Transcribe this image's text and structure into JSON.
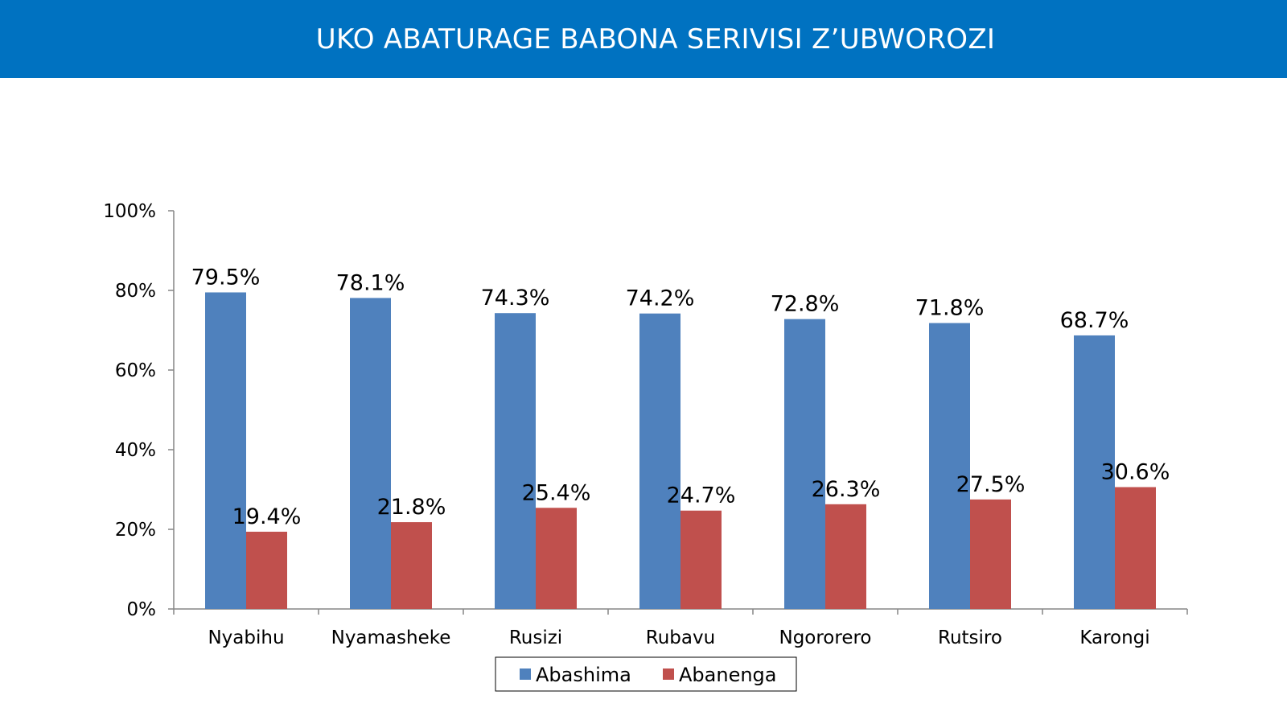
{
  "header": {
    "title": "UKO ABATURAGE BABONA SERIVISI Z’UBWOROZI"
  },
  "chart_data": {
    "type": "bar",
    "title": "UKO ABATURAGE BABONA SERIVISI Z’UBWOROZI",
    "categories": [
      "Nyabihu",
      "Nyamasheke",
      "Rusizi",
      "Rubavu",
      "Ngororero",
      "Rutsiro",
      "Karongi"
    ],
    "series": [
      {
        "name": "Abashima",
        "color": "#4f81bd",
        "values": [
          79.5,
          78.1,
          74.3,
          74.2,
          72.8,
          71.8,
          68.7
        ],
        "labels": [
          "79.5%",
          "78.1%",
          "74.3%",
          "74.2%",
          "72.8%",
          "71.8%",
          "68.7%"
        ]
      },
      {
        "name": "Abanenga",
        "color": "#c0504d",
        "values": [
          19.4,
          21.8,
          25.4,
          24.7,
          26.3,
          27.5,
          30.6
        ],
        "labels": [
          "19.4%",
          "21.8%",
          "25.4%",
          "24.7%",
          "26.3%",
          "27.5%",
          "30.6%"
        ]
      }
    ],
    "ylim": [
      0,
      100
    ],
    "yticks": [
      0,
      20,
      40,
      60,
      80,
      100
    ],
    "ytick_labels": [
      "0%",
      "20%",
      "40%",
      "60%",
      "80%",
      "100%"
    ],
    "grid": false,
    "legend_position": "bottom"
  }
}
